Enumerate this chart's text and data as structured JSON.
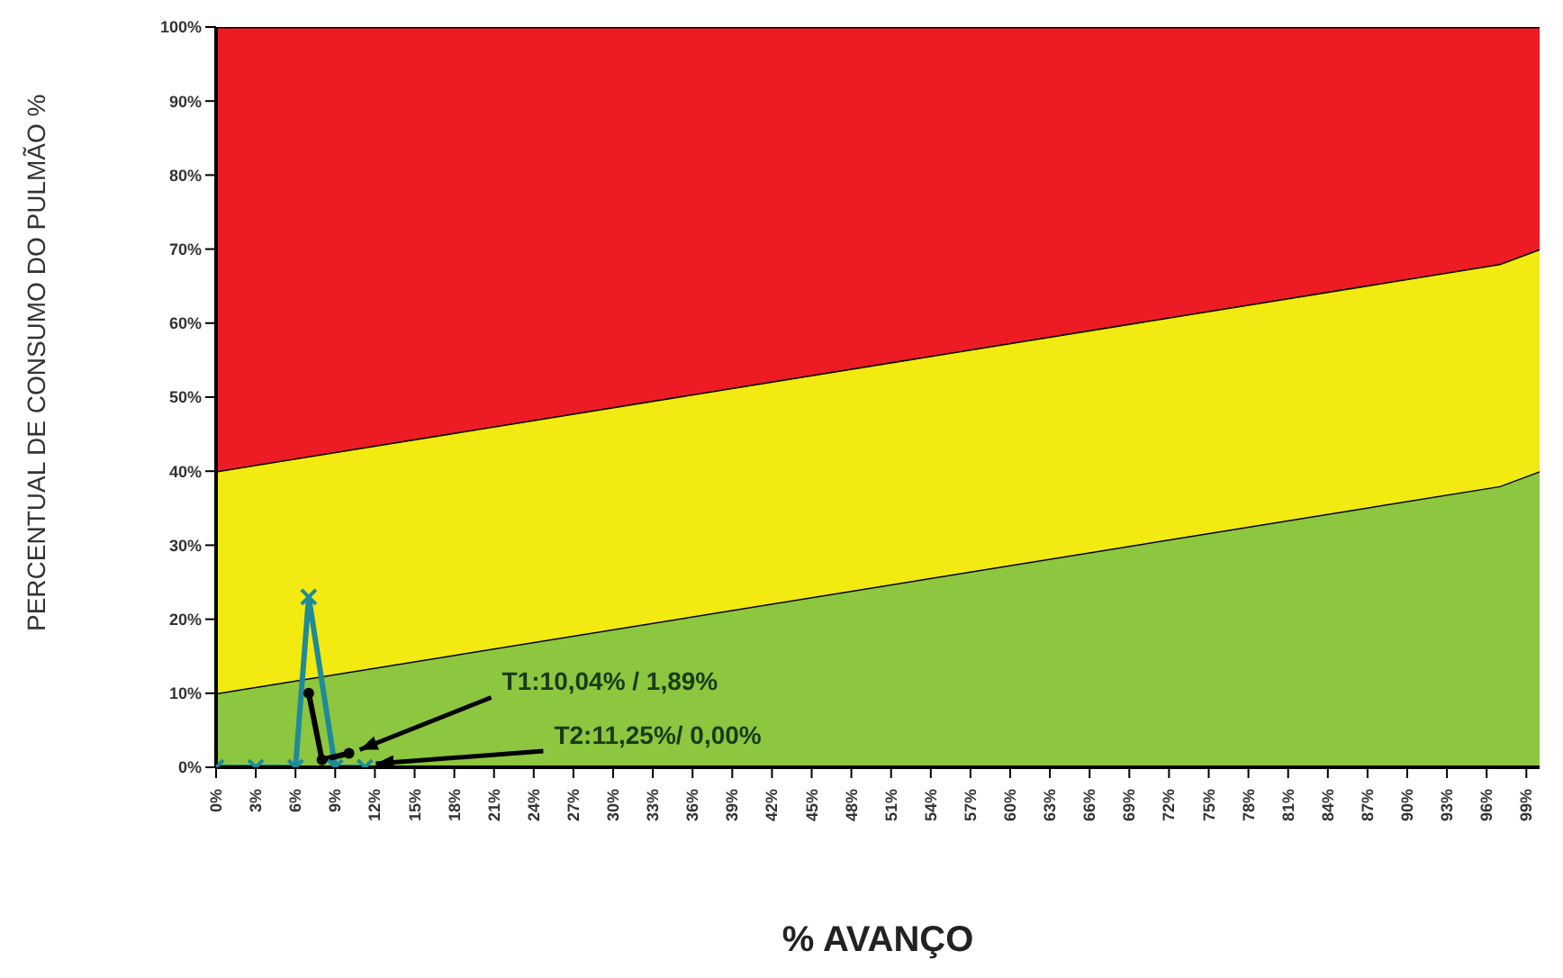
{
  "chart_data": {
    "type": "line",
    "xlabel": "% AVANÇO",
    "ylabel": "PERCENTUAL DE CONSUMO DO PULMÃO %",
    "xlim": [
      0,
      100
    ],
    "ylim": [
      0,
      100
    ],
    "xticks": [
      {
        "value": 0,
        "label": "0%"
      },
      {
        "value": 3,
        "label": "3%"
      },
      {
        "value": 6,
        "label": "6%"
      },
      {
        "value": 9,
        "label": "9%"
      },
      {
        "value": 12,
        "label": "12%"
      },
      {
        "value": 15,
        "label": "15%"
      },
      {
        "value": 18,
        "label": "18%"
      },
      {
        "value": 21,
        "label": "21%"
      },
      {
        "value": 24,
        "label": "24%"
      },
      {
        "value": 27,
        "label": "27%"
      },
      {
        "value": 30,
        "label": "30%"
      },
      {
        "value": 33,
        "label": "33%"
      },
      {
        "value": 36,
        "label": "36%"
      },
      {
        "value": 39,
        "label": "39%"
      },
      {
        "value": 42,
        "label": "42%"
      },
      {
        "value": 45,
        "label": "45%"
      },
      {
        "value": 48,
        "label": "48%"
      },
      {
        "value": 51,
        "label": "51%"
      },
      {
        "value": 54,
        "label": "54%"
      },
      {
        "value": 57,
        "label": "57%"
      },
      {
        "value": 60,
        "label": "60%"
      },
      {
        "value": 63,
        "label": "63%"
      },
      {
        "value": 66,
        "label": "66%"
      },
      {
        "value": 69,
        "label": "69%"
      },
      {
        "value": 72,
        "label": "72%"
      },
      {
        "value": 75,
        "label": "75%"
      },
      {
        "value": 78,
        "label": "78%"
      },
      {
        "value": 81,
        "label": "81%"
      },
      {
        "value": 84,
        "label": "84%"
      },
      {
        "value": 87,
        "label": "87%"
      },
      {
        "value": 90,
        "label": "90%"
      },
      {
        "value": 93,
        "label": "93%"
      },
      {
        "value": 96,
        "label": "96%"
      },
      {
        "value": 99,
        "label": "99%"
      }
    ],
    "yticks": [
      {
        "value": 0,
        "label": "0%"
      },
      {
        "value": 10,
        "label": "10%"
      },
      {
        "value": 20,
        "label": "20%"
      },
      {
        "value": 30,
        "label": "30%"
      },
      {
        "value": 40,
        "label": "40%"
      },
      {
        "value": 50,
        "label": "50%"
      },
      {
        "value": 60,
        "label": "60%"
      },
      {
        "value": 70,
        "label": "70%"
      },
      {
        "value": 80,
        "label": "80%"
      },
      {
        "value": 90,
        "label": "90%"
      },
      {
        "value": 100,
        "label": "100%"
      }
    ],
    "grid": false,
    "legend": false,
    "stacked": true,
    "series": [
      {
        "type": "area",
        "color": "#8dc63f",
        "x": [
          0,
          97,
          100
        ],
        "values": [
          10,
          38,
          40
        ]
      },
      {
        "type": "area",
        "color": "#f2ea10",
        "x": [
          0,
          97,
          100
        ],
        "values": [
          30,
          30,
          30
        ]
      },
      {
        "type": "area",
        "color": "#ed1c24",
        "x": [
          0,
          97,
          100
        ],
        "values": [
          60,
          32,
          30
        ]
      },
      {
        "type": "line",
        "color": "#1f8a99",
        "marker": "cross",
        "x": [
          0,
          3,
          6,
          7,
          9,
          11.25
        ],
        "values": [
          0,
          0,
          0,
          23,
          0,
          0
        ]
      },
      {
        "type": "line",
        "color": "#000000",
        "marker": "circle",
        "x": [
          7,
          8,
          10.04
        ],
        "values": [
          10,
          1,
          1.89
        ]
      }
    ],
    "annotations": [
      {
        "text": "T1:10,04% / 1,89%",
        "x": 10.04,
        "y": 1.89
      },
      {
        "text": "T2:11,25%/ 0,00%",
        "x": 11.25,
        "y": 0
      }
    ]
  }
}
